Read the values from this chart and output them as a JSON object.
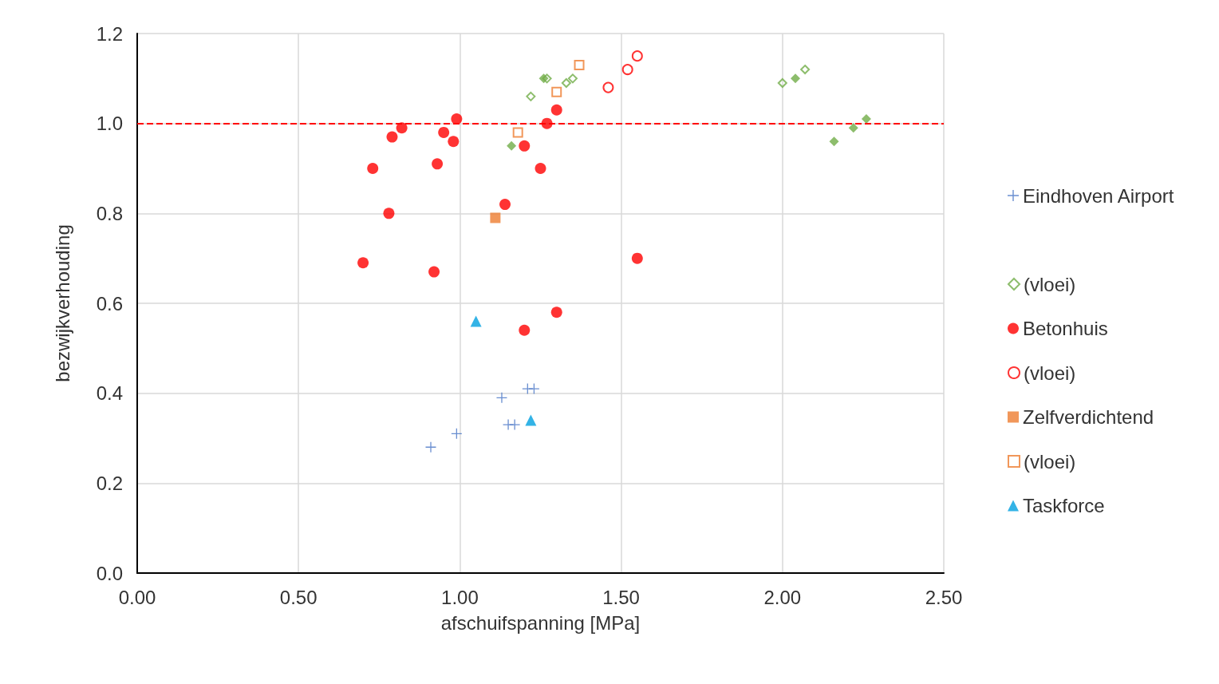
{
  "chart_data": {
    "type": "scatter",
    "xlabel": "afschuifspanning [MPa]",
    "ylabel": "bezwijkverhouding",
    "xlim": [
      0,
      2.5
    ],
    "xticks": [
      {
        "value": 0,
        "label": "0.00"
      },
      {
        "value": 0.5,
        "label": "0.50"
      },
      {
        "value": 1,
        "label": "1.00"
      },
      {
        "value": 1.5,
        "label": "1.50"
      },
      {
        "value": 2,
        "label": "2.00"
      },
      {
        "value": 2.5,
        "label": "2.50"
      }
    ],
    "ylim": [
      0,
      1.2
    ],
    "yticks": [
      {
        "value": 0,
        "label": "0.0"
      },
      {
        "value": 0.2,
        "label": "0.2"
      },
      {
        "value": 0.4,
        "label": "0.4"
      },
      {
        "value": 0.6,
        "label": "0.6"
      },
      {
        "value": 0.8,
        "label": "0.8"
      },
      {
        "value": 1,
        "label": "1.0"
      },
      {
        "value": 1.2,
        "label": "1.2"
      }
    ],
    "grid": true,
    "legend": "right",
    "ref_lines": [
      {
        "axis": "y",
        "value": 1,
        "label": null,
        "color": "#ff0000",
        "line_style": "dashed"
      }
    ],
    "series": [
      {
        "name": "Eindhoven Airport",
        "color": "#4472c4",
        "marker": "cross",
        "x": [
          0.91,
          0.99,
          1.13,
          1.15,
          1.17,
          1.21,
          1.23
        ],
        "values": [
          0.28,
          0.31,
          0.39,
          0.33,
          0.33,
          0.41,
          0.41
        ]
      },
      {
        "color": "#70ad47",
        "marker": "diamond",
        "x": [
          1.16,
          1.26,
          2.04,
          2.16,
          2.22,
          2.26
        ],
        "values": [
          0.95,
          1.1,
          1.1,
          0.96,
          0.99,
          1.01
        ]
      },
      {
        "name": "(vloei)",
        "color": "#70ad47",
        "marker": "diamond-open",
        "x": [
          1.22,
          1.27,
          1.33,
          1.35,
          2.0,
          2.07
        ],
        "values": [
          1.06,
          1.1,
          1.09,
          1.1,
          1.09,
          1.12
        ]
      },
      {
        "name": "Betonhuis",
        "color": "#ff0000",
        "marker": "circle",
        "x": [
          0.7,
          0.73,
          0.78,
          0.79,
          0.82,
          0.92,
          0.93,
          0.95,
          0.98,
          0.99,
          1.14,
          1.2,
          1.2,
          1.25,
          1.27,
          1.3,
          1.3,
          1.55
        ],
        "values": [
          0.69,
          0.9,
          0.8,
          0.97,
          0.99,
          0.67,
          0.91,
          0.98,
          0.96,
          1.01,
          0.82,
          0.95,
          0.54,
          0.9,
          1.0,
          1.03,
          0.58,
          0.7
        ]
      },
      {
        "name": "(vloei)",
        "color": "#ff0000",
        "marker": "circle-open",
        "x": [
          1.46,
          1.52,
          1.55
        ],
        "values": [
          1.08,
          1.12,
          1.15
        ]
      },
      {
        "name": "Zelfverdichtend",
        "color": "#ed7d31",
        "marker": "square",
        "x": [
          1.11
        ],
        "values": [
          0.79
        ]
      },
      {
        "name": "(vloei)",
        "color": "#ed7d31",
        "marker": "square-open",
        "x": [
          1.18,
          1.3,
          1.37
        ],
        "values": [
          0.98,
          1.07,
          1.13
        ]
      },
      {
        "name": "Taskforce",
        "color": "#00a0e0",
        "marker": "triangle",
        "x": [
          1.05,
          1.22
        ],
        "values": [
          0.56,
          0.34
        ]
      }
    ]
  }
}
